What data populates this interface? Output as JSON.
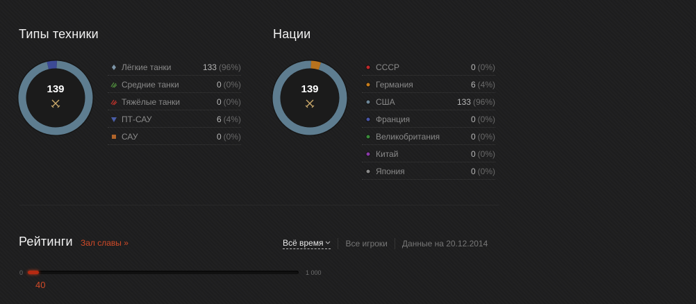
{
  "vehicle_types": {
    "title": "Типы техники",
    "total": "139",
    "items": [
      {
        "label": "Лёгкие танки",
        "count": "133",
        "pct": "(96%)",
        "icon": "light-tank-icon",
        "color": "#7d96a8"
      },
      {
        "label": "Средние танки",
        "count": "0",
        "pct": "(0%)",
        "icon": "medium-tank-icon",
        "color": "#4e8a3c"
      },
      {
        "label": "Тяжёлые танки",
        "count": "0",
        "pct": "(0%)",
        "icon": "heavy-tank-icon",
        "color": "#b5322a"
      },
      {
        "label": "ПТ-САУ",
        "count": "6",
        "pct": "(4%)",
        "icon": "tank-destroyer-icon",
        "color": "#4a5ea8"
      },
      {
        "label": "САУ",
        "count": "0",
        "pct": "(0%)",
        "icon": "spg-icon",
        "color": "#b0642a"
      }
    ]
  },
  "nations": {
    "title": "Нации",
    "total": "139",
    "items": [
      {
        "label": "СССР",
        "count": "0",
        "pct": "(0%)",
        "icon": "ussr-dot-icon",
        "color": "#c0282a"
      },
      {
        "label": "Германия",
        "count": "6",
        "pct": "(4%)",
        "icon": "germany-dot-icon",
        "color": "#c87d1c"
      },
      {
        "label": "США",
        "count": "133",
        "pct": "(96%)",
        "icon": "usa-dot-icon",
        "color": "#6e8798"
      },
      {
        "label": "Франция",
        "count": "0",
        "pct": "(0%)",
        "icon": "france-dot-icon",
        "color": "#4a56a8"
      },
      {
        "label": "Великобритания",
        "count": "0",
        "pct": "(0%)",
        "icon": "uk-dot-icon",
        "color": "#3a8a3a"
      },
      {
        "label": "Китай",
        "count": "0",
        "pct": "(0%)",
        "icon": "china-dot-icon",
        "color": "#8a3aa8"
      },
      {
        "label": "Япония",
        "count": "0",
        "pct": "(0%)",
        "icon": "japan-dot-icon",
        "color": "#8a8a8a"
      }
    ]
  },
  "ratings": {
    "title": "Рейтинги",
    "hall_of_fame_link": "Зал славы »",
    "period": "Всё время",
    "players_filter": "Все игроки",
    "data_date": "Данные на 20.12.2014",
    "axis_min": "0",
    "axis_max": "1 000",
    "value": "40",
    "value_fraction": 0.04
  },
  "colors": {
    "accent": "#d14a28",
    "donut_main": "#5e7d90"
  },
  "chart_data": [
    {
      "type": "pie",
      "title": "Типы техники",
      "categories": [
        "Лёгкие танки",
        "Средние танки",
        "Тяжёлые танки",
        "ПТ-САУ",
        "САУ"
      ],
      "values": [
        133,
        0,
        0,
        6,
        0
      ],
      "colors": [
        "#5e7d90",
        "#4e8a3c",
        "#b5322a",
        "#3c4a96",
        "#b0642a"
      ]
    },
    {
      "type": "pie",
      "title": "Нации",
      "categories": [
        "СССР",
        "Германия",
        "США",
        "Франция",
        "Великобритания",
        "Китай",
        "Япония"
      ],
      "values": [
        0,
        6,
        133,
        0,
        0,
        0,
        0
      ],
      "colors": [
        "#c0282a",
        "#b8731e",
        "#5e7d90",
        "#4a56a8",
        "#3a8a3a",
        "#8a3aa8",
        "#8a8a8a"
      ]
    }
  ]
}
